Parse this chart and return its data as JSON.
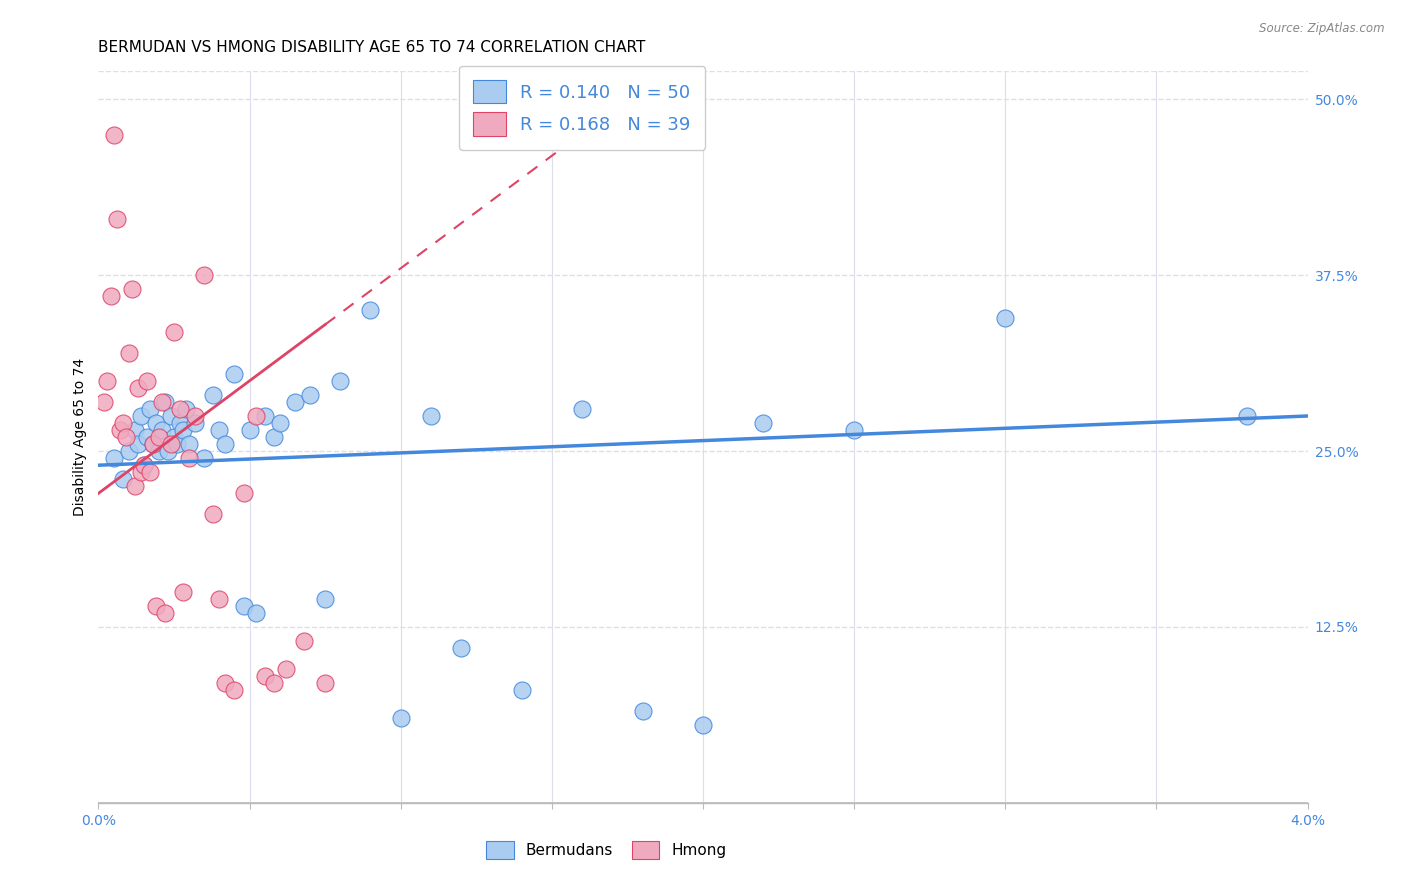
{
  "title": "BERMUDAN VS HMONG DISABILITY AGE 65 TO 74 CORRELATION CHART",
  "source": "Source: ZipAtlas.com",
  "ylabel": "Disability Age 65 to 74",
  "xlim": [
    0.0,
    4.0
  ],
  "ylim": [
    0.0,
    52.0
  ],
  "yticks_right": [
    12.5,
    25.0,
    37.5,
    50.0
  ],
  "ytick_labels_right": [
    "12.5%",
    "25.0%",
    "37.5%",
    "50.0%"
  ],
  "xtick_positions": [
    0.0,
    0.5,
    1.0,
    1.5,
    2.0,
    2.5,
    3.0,
    3.5,
    4.0
  ],
  "bermuda_color": "#aaccf0",
  "hmong_color": "#f0aac0",
  "bermuda_line_color": "#4488dd",
  "hmong_line_color": "#dd4466",
  "R_bermuda": 0.14,
  "N_bermuda": 50,
  "R_hmong": 0.168,
  "N_hmong": 39,
  "background_color": "#ffffff",
  "grid_color": "#ddddee",
  "title_fontsize": 11,
  "axis_label_fontsize": 10,
  "tick_fontsize": 10,
  "bermuda_x": [
    0.05,
    0.08,
    0.1,
    0.12,
    0.13,
    0.14,
    0.15,
    0.16,
    0.17,
    0.18,
    0.19,
    0.2,
    0.21,
    0.22,
    0.23,
    0.24,
    0.25,
    0.26,
    0.27,
    0.28,
    0.29,
    0.3,
    0.32,
    0.35,
    0.38,
    0.4,
    0.42,
    0.45,
    0.48,
    0.5,
    0.52,
    0.55,
    0.58,
    0.6,
    0.65,
    0.7,
    0.75,
    0.8,
    0.9,
    1.0,
    1.1,
    1.2,
    1.4,
    1.6,
    1.8,
    2.0,
    2.2,
    2.5,
    3.0,
    3.8
  ],
  "bermuda_y": [
    24.5,
    23.0,
    25.0,
    26.5,
    25.5,
    27.5,
    24.0,
    26.0,
    28.0,
    25.5,
    27.0,
    25.0,
    26.5,
    28.5,
    25.0,
    27.5,
    26.0,
    25.5,
    27.0,
    26.5,
    28.0,
    25.5,
    27.0,
    24.5,
    29.0,
    26.5,
    25.5,
    30.5,
    14.0,
    26.5,
    13.5,
    27.5,
    26.0,
    27.0,
    28.5,
    29.0,
    14.5,
    30.0,
    35.0,
    6.0,
    27.5,
    11.0,
    8.0,
    28.0,
    6.5,
    5.5,
    27.0,
    26.5,
    34.5,
    27.5
  ],
  "hmong_x": [
    0.02,
    0.03,
    0.04,
    0.05,
    0.06,
    0.07,
    0.08,
    0.09,
    0.1,
    0.11,
    0.12,
    0.13,
    0.14,
    0.15,
    0.16,
    0.17,
    0.18,
    0.19,
    0.2,
    0.21,
    0.22,
    0.24,
    0.25,
    0.27,
    0.28,
    0.3,
    0.32,
    0.35,
    0.38,
    0.4,
    0.42,
    0.45,
    0.48,
    0.52,
    0.55,
    0.58,
    0.62,
    0.68,
    0.75
  ],
  "hmong_y": [
    28.5,
    30.0,
    36.0,
    47.5,
    41.5,
    26.5,
    27.0,
    26.0,
    32.0,
    36.5,
    22.5,
    29.5,
    23.5,
    24.0,
    30.0,
    23.5,
    25.5,
    14.0,
    26.0,
    28.5,
    13.5,
    25.5,
    33.5,
    28.0,
    15.0,
    24.5,
    27.5,
    37.5,
    20.5,
    14.5,
    8.5,
    8.0,
    22.0,
    27.5,
    9.0,
    8.5,
    9.5,
    11.5,
    8.5
  ],
  "trend_bermuda_x0": 0.0,
  "trend_bermuda_y0": 24.0,
  "trend_bermuda_x1": 4.0,
  "trend_bermuda_y1": 27.5,
  "trend_hmong_x0": 0.0,
  "trend_hmong_y0": 22.0,
  "trend_hmong_x1": 0.75,
  "trend_hmong_y1": 34.0
}
